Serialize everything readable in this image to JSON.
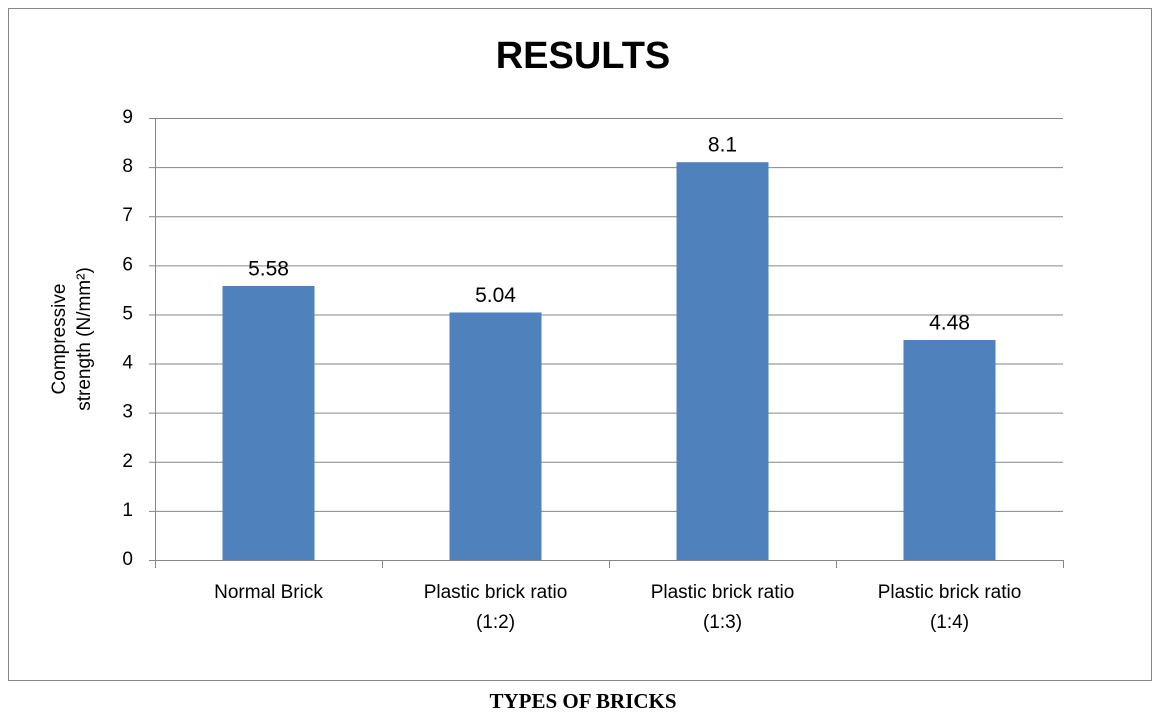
{
  "chart_data": {
    "type": "bar",
    "title": "RESULTS",
    "ylabel": [
      "Compressive",
      "strength (N/mm²)"
    ],
    "xlabel": "TYPES OF BRICKS",
    "categories": [
      [
        "Normal Brick"
      ],
      [
        "Plastic brick ratio",
        "(1:2)"
      ],
      [
        "Plastic brick ratio",
        "(1:3)"
      ],
      [
        "Plastic brick ratio",
        "(1:4)"
      ]
    ],
    "values": [
      5.58,
      5.04,
      8.1,
      4.48
    ],
    "color": "#4f81bd",
    "ylim": [
      0,
      9
    ],
    "yticks": [
      0,
      1,
      2,
      3,
      4,
      5,
      6,
      7,
      8,
      9
    ],
    "grid": true
  }
}
